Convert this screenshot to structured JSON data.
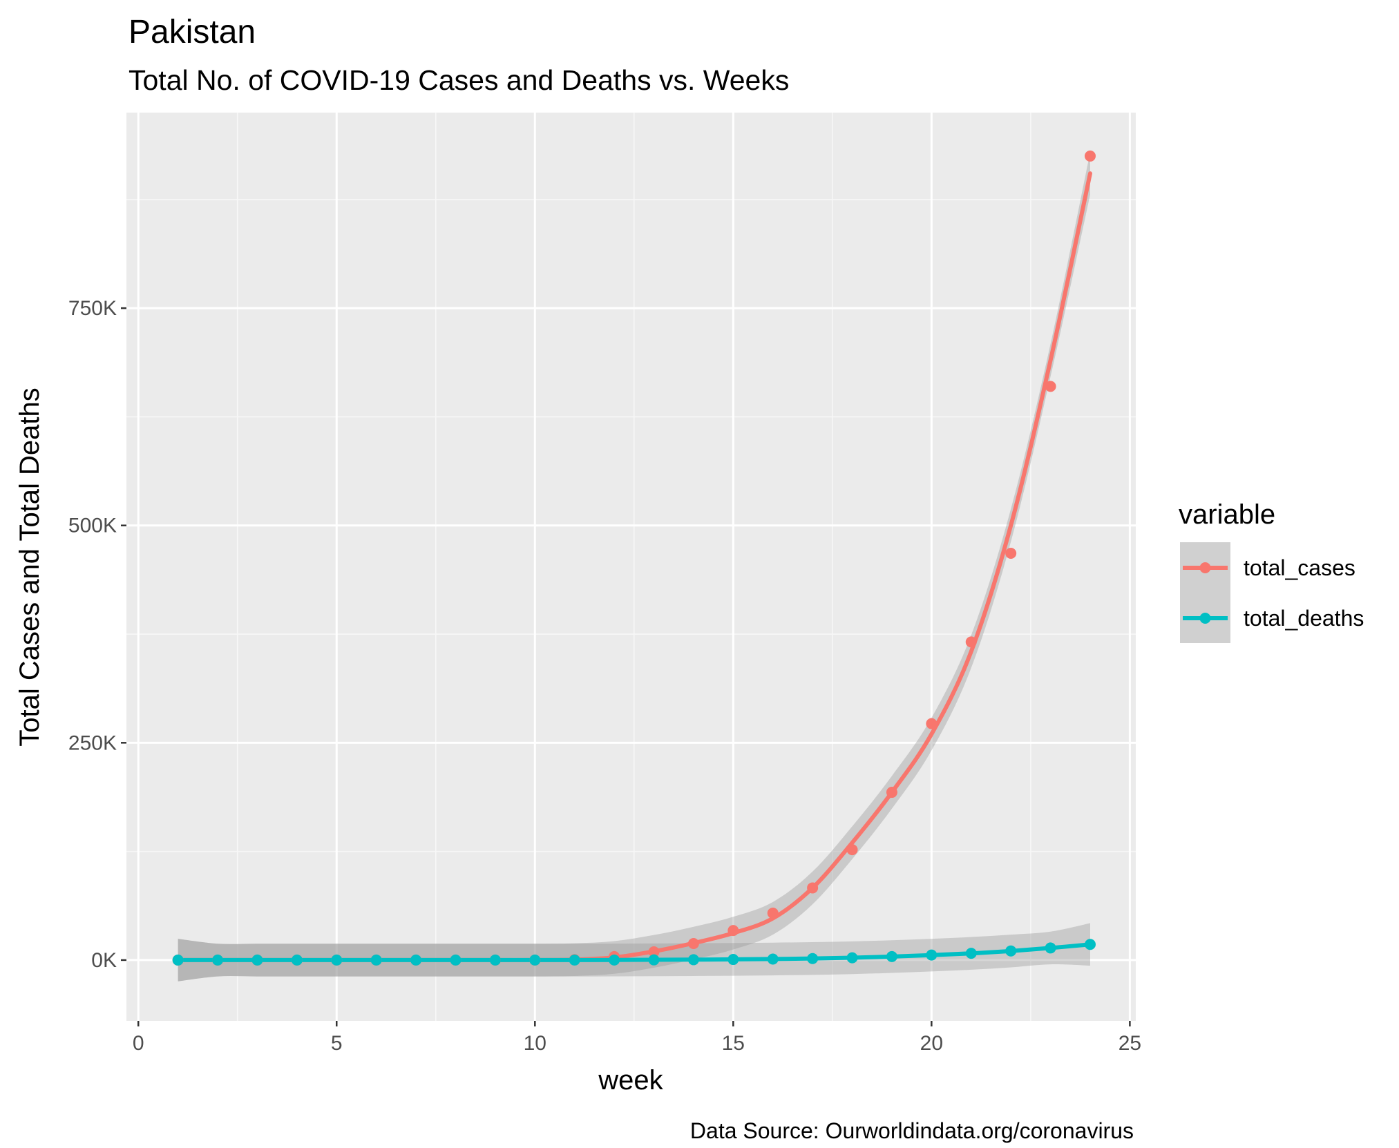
{
  "chart_data": {
    "type": "line",
    "title": "Pakistan",
    "subtitle": "Total No. of COVID-19 Cases and Deaths vs. Weeks",
    "xlabel": "week",
    "ylabel": "Total Cases and Total Deaths",
    "caption": "Data Source: Ourworldindata.org/coronavirus",
    "xlim": [
      -0.3,
      25.15
    ],
    "ylim": [
      -70000,
      975000
    ],
    "x_ticks": [
      0,
      5,
      10,
      15,
      20,
      25
    ],
    "x_tick_labels": [
      "0",
      "5",
      "10",
      "15",
      "20",
      "25"
    ],
    "y_ticks": [
      0,
      250000,
      500000,
      750000
    ],
    "y_tick_labels": [
      "0K",
      "250K",
      "500K",
      "750K"
    ],
    "grid": true,
    "legend": {
      "title": "variable",
      "position": "right"
    },
    "x": [
      1,
      2,
      3,
      4,
      5,
      6,
      7,
      8,
      9,
      10,
      11,
      12,
      13,
      14,
      15,
      16,
      17,
      18,
      19,
      20,
      21,
      22,
      23,
      24
    ],
    "series": [
      {
        "name": "total_cases",
        "color": "#F8766D",
        "values": [
          0,
          0,
          0,
          0,
          0,
          0,
          0,
          0,
          0,
          0,
          500,
          4000,
          9500,
          19000,
          34000,
          54000,
          83000,
          127000,
          193000,
          272000,
          366000,
          468000,
          660000,
          925000
        ],
        "smooth": [
          0,
          0,
          0,
          0,
          0,
          0,
          0,
          0,
          0,
          0,
          500,
          3000,
          10000,
          19500,
          31000,
          48000,
          83000,
          135000,
          193000,
          260000,
          355000,
          500000,
          690000,
          905000
        ]
      },
      {
        "name": "total_deaths",
        "color": "#00BFC4",
        "values": [
          0,
          0,
          0,
          0,
          0,
          0,
          0,
          0,
          0,
          0,
          0,
          50,
          200,
          400,
          700,
          1100,
          1700,
          2600,
          4000,
          5800,
          7800,
          10500,
          13900,
          18000
        ],
        "smooth": [
          0,
          0,
          0,
          0,
          0,
          0,
          0,
          0,
          0,
          0,
          0,
          100,
          300,
          500,
          800,
          1200,
          1800,
          2700,
          4000,
          5700,
          7700,
          10400,
          13900,
          18000
        ]
      }
    ]
  }
}
